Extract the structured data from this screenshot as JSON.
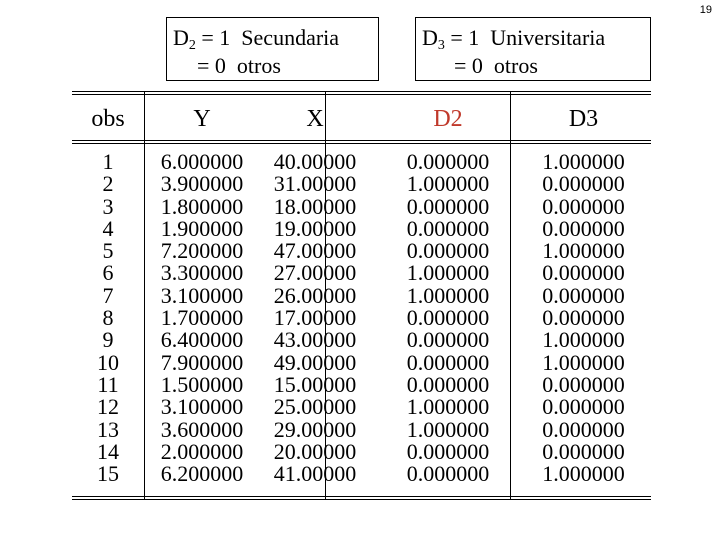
{
  "page_number": "19",
  "legend": {
    "d2": {
      "var": "D",
      "sub": "2",
      "eq1": " = 1  Secundaria",
      "eq2": "= 0  otros"
    },
    "d3": {
      "var": "D",
      "sub": "3",
      "eq1": " = 1  Universitaria",
      "eq2": "= 0  otros"
    }
  },
  "table": {
    "headers": {
      "obs": "obs",
      "y": "Y",
      "x": "X",
      "d2": "D2",
      "d3": "D3"
    },
    "header_accent_color": "#c0392b",
    "rows": [
      {
        "obs": "1",
        "y": "6.000000",
        "x": "40.00000",
        "d2": "0.000000",
        "d3": "1.000000"
      },
      {
        "obs": "2",
        "y": "3.900000",
        "x": "31.00000",
        "d2": "1.000000",
        "d3": "0.000000"
      },
      {
        "obs": "3",
        "y": "1.800000",
        "x": "18.00000",
        "d2": "0.000000",
        "d3": "0.000000"
      },
      {
        "obs": "4",
        "y": "1.900000",
        "x": "19.00000",
        "d2": "0.000000",
        "d3": "0.000000"
      },
      {
        "obs": "5",
        "y": "7.200000",
        "x": "47.00000",
        "d2": "0.000000",
        "d3": "1.000000"
      },
      {
        "obs": "6",
        "y": "3.300000",
        "x": "27.00000",
        "d2": "1.000000",
        "d3": "0.000000"
      },
      {
        "obs": "7",
        "y": "3.100000",
        "x": "26.00000",
        "d2": "1.000000",
        "d3": "0.000000"
      },
      {
        "obs": "8",
        "y": "1.700000",
        "x": "17.00000",
        "d2": "0.000000",
        "d3": "0.000000"
      },
      {
        "obs": "9",
        "y": "6.400000",
        "x": "43.00000",
        "d2": "0.000000",
        "d3": "1.000000"
      },
      {
        "obs": "10",
        "y": "7.900000",
        "x": "49.00000",
        "d2": "0.000000",
        "d3": "1.000000"
      },
      {
        "obs": "11",
        "y": "1.500000",
        "x": "15.00000",
        "d2": "0.000000",
        "d3": "0.000000"
      },
      {
        "obs": "12",
        "y": "3.100000",
        "x": "25.00000",
        "d2": "1.000000",
        "d3": "0.000000"
      },
      {
        "obs": "13",
        "y": "3.600000",
        "x": "29.00000",
        "d2": "1.000000",
        "d3": "0.000000"
      },
      {
        "obs": "14",
        "y": "2.000000",
        "x": "20.00000",
        "d2": "0.000000",
        "d3": "0.000000"
      },
      {
        "obs": "15",
        "y": "6.200000",
        "x": "41.00000",
        "d2": "0.000000",
        "d3": "1.000000"
      }
    ]
  }
}
